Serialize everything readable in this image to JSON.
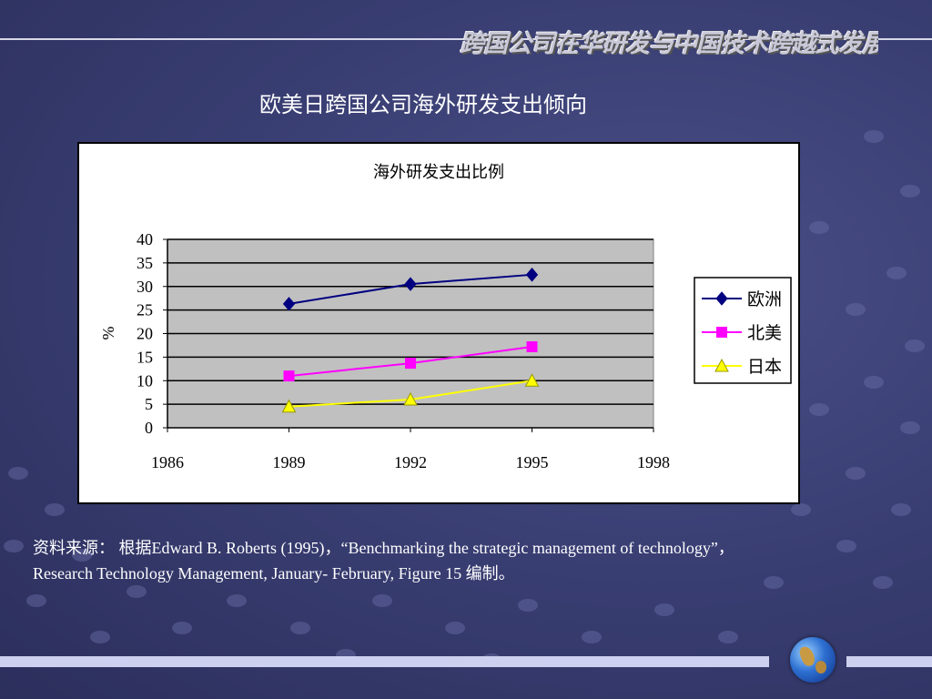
{
  "banner_text": "跨国公司在华研发与中国技术跨越式发展",
  "slide_title": "欧美日跨国公司海外研发支出倾向",
  "source_line1": "资料来源： 根据Edward B. Roberts (1995)，“Benchmarking the strategic management of technology”，",
  "source_line2": "Research Technology Management,  January- February, Figure 15 编制。",
  "chart_data": {
    "type": "line",
    "title": "海外研发支出比例",
    "xlabel": "",
    "ylabel": "%",
    "xlim": [
      1986,
      1998
    ],
    "ylim": [
      0,
      40
    ],
    "x_ticks": [
      "1986",
      "1989",
      "1992",
      "1995",
      "1998"
    ],
    "y_ticks": [
      "0",
      "5",
      "10",
      "15",
      "20",
      "25",
      "30",
      "35",
      "40"
    ],
    "grid": true,
    "legend_position": "right",
    "series": [
      {
        "name": "欧洲",
        "x": [
          1989,
          1992,
          1995
        ],
        "values": [
          26.3,
          30.5,
          32.5
        ],
        "color": "#000080",
        "marker": "diamond"
      },
      {
        "name": "北美",
        "x": [
          1989,
          1992,
          1995
        ],
        "values": [
          11.0,
          13.7,
          17.2
        ],
        "color": "#ff00ff",
        "marker": "square"
      },
      {
        "name": "日本",
        "x": [
          1989,
          1992,
          1995
        ],
        "values": [
          4.5,
          6.0,
          10.0
        ],
        "color": "#ffff00",
        "marker": "triangle"
      }
    ]
  }
}
